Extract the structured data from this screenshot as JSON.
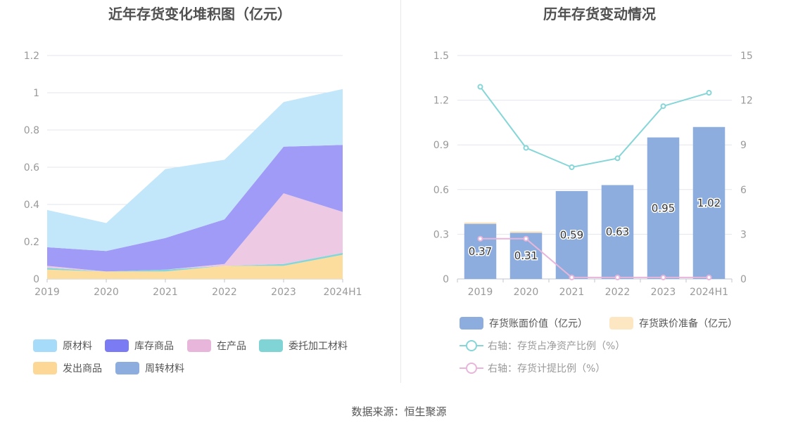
{
  "source": "数据来源：恒生聚源",
  "chart_data": [
    {
      "type": "area",
      "stacked": true,
      "title": "近年存货变化堆积图（亿元）",
      "categories": [
        "2019",
        "2020",
        "2021",
        "2022",
        "2023",
        "2024H1"
      ],
      "ylim": [
        0,
        1.2
      ],
      "yticks": [
        "0",
        "0.2",
        "0.4",
        "0.6",
        "0.8",
        "1",
        "1.2"
      ],
      "series": [
        {
          "name": "发出商品",
          "color": "#fddd9e",
          "values": [
            0.05,
            0.04,
            0.04,
            0.07,
            0.07,
            0.13
          ]
        },
        {
          "name": "委托加工材料",
          "color": "#86d6d8",
          "values": [
            0.01,
            0.0,
            0.01,
            0.0,
            0.01,
            0.01
          ]
        },
        {
          "name": "在产品",
          "color": "#edc9e4",
          "values": [
            0.01,
            0.0,
            0.0,
            0.01,
            0.38,
            0.22
          ]
        },
        {
          "name": "周转材料",
          "color": "#8eaede",
          "values": [
            0.0,
            0.0,
            0.0,
            0.0,
            0.0,
            0.0
          ]
        },
        {
          "name": "库存商品",
          "color": "#a09bf7",
          "values": [
            0.1,
            0.11,
            0.17,
            0.24,
            0.25,
            0.36
          ]
        },
        {
          "name": "原材料",
          "color": "#c2e6fa",
          "values": [
            0.2,
            0.15,
            0.37,
            0.32,
            0.24,
            0.3
          ]
        }
      ],
      "legend": [
        {
          "name": "原材料",
          "color": "#a6dcf9"
        },
        {
          "name": "库存商品",
          "color": "#7b7cf4"
        },
        {
          "name": "在产品",
          "color": "#e8b6da"
        },
        {
          "name": "委托加工材料",
          "color": "#80d4d5"
        },
        {
          "name": "发出商品",
          "color": "#fdd796"
        },
        {
          "name": "周转材料",
          "color": "#8caddd"
        }
      ]
    },
    {
      "type": "bar+line",
      "title": "历年存货变动情况",
      "categories": [
        "2019",
        "2020",
        "2021",
        "2022",
        "2023",
        "2024H1"
      ],
      "ylim_left": [
        0,
        1.5
      ],
      "yticks_left": [
        "0",
        "0.3",
        "0.6",
        "0.9",
        "1.2",
        "1.5"
      ],
      "ylim_right": [
        0,
        15
      ],
      "yticks_right": [
        "0",
        "3",
        "6",
        "9",
        "12",
        "15"
      ],
      "bars_book_value": {
        "name": "存货账面价值（亿元）",
        "color": "#8caddd",
        "values": [
          0.37,
          0.31,
          0.59,
          0.63,
          0.95,
          1.02
        ],
        "labels": [
          "0.37",
          "0.31",
          "0.59",
          "0.63",
          "0.95",
          "1.02"
        ]
      },
      "bars_impairment": {
        "name": "存货跌价准备（亿元）",
        "color": "#fde7c3",
        "values": [
          0.01,
          0.01,
          0.0,
          0.0,
          0.0,
          0.0
        ]
      },
      "line_ratio_net_assets": {
        "name": "右轴：存货占净资产比例（%）",
        "color": "#86d6d8",
        "values": [
          12.9,
          8.8,
          7.5,
          8.1,
          11.6,
          12.5
        ]
      },
      "line_provision_ratio": {
        "name": "右轴：存货计提比例（%）",
        "color": "#e8b6da",
        "values": [
          2.7,
          2.7,
          0.1,
          0.1,
          0.1,
          0.1
        ]
      }
    }
  ]
}
